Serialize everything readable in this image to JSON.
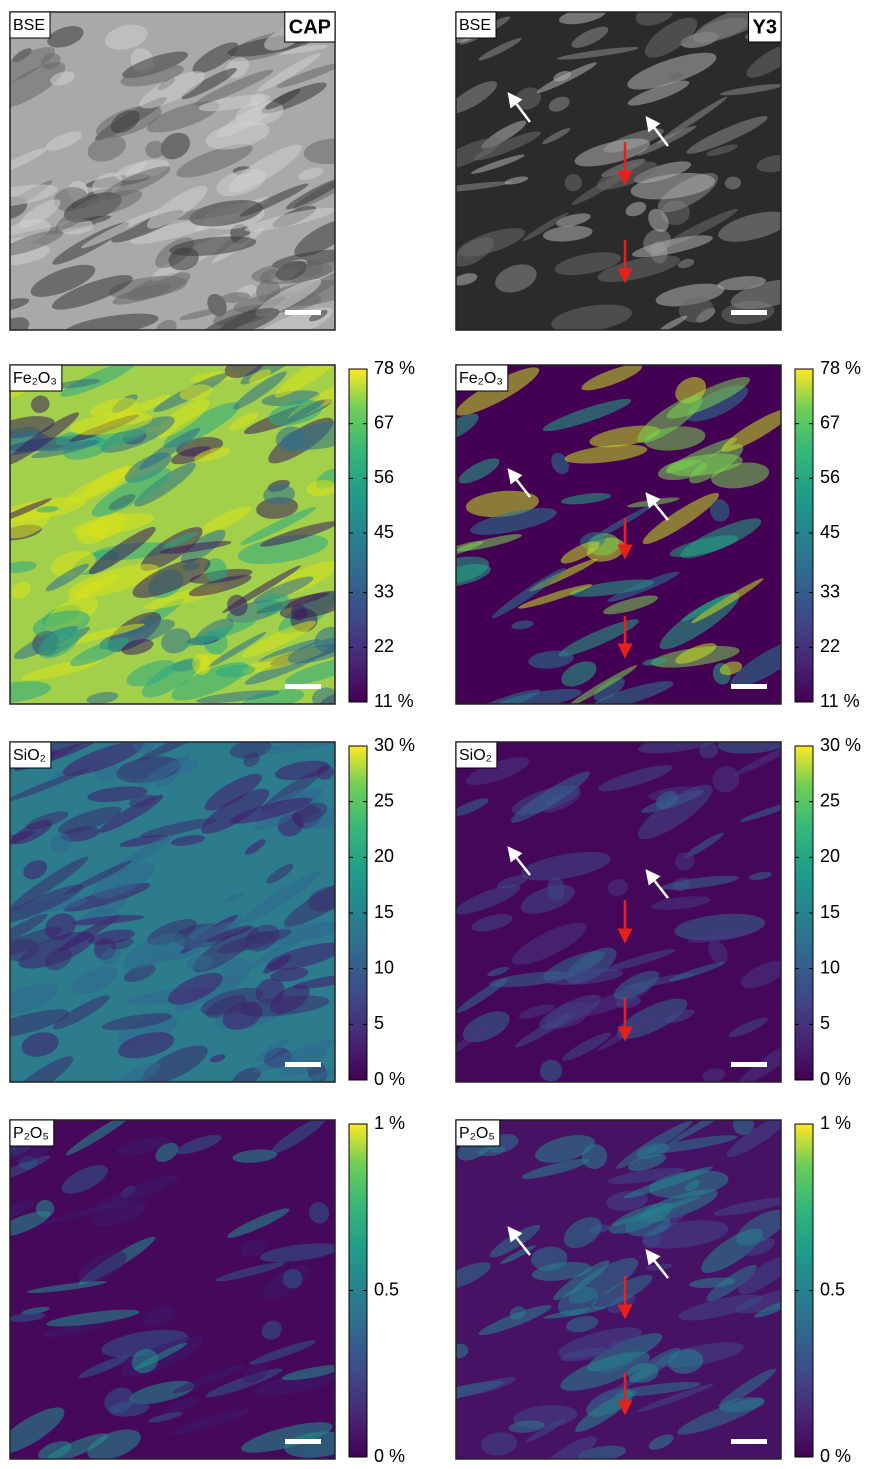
{
  "panels": [
    {
      "label": "BSE",
      "sample": "CAP"
    },
    {
      "label": "BSE",
      "sample": "Y3"
    },
    {
      "label": "Fe₂O₃",
      "colorbar": {
        "lim": [
          11,
          78
        ],
        "ticks": [
          {
            "value": 78,
            "label": "78 %"
          },
          67,
          56,
          45,
          33,
          22,
          {
            "value": 11,
            "label": "11 %"
          }
        ]
      }
    },
    {
      "label": "Fe₂O₃",
      "colorbar": {
        "lim": [
          11,
          78
        ],
        "ticks": [
          {
            "value": 78,
            "label": "78 %"
          },
          67,
          56,
          45,
          33,
          22,
          {
            "value": 11,
            "label": "11 %"
          }
        ]
      }
    },
    {
      "label": "SiO₂",
      "colorbar": {
        "lim": [
          0,
          30
        ],
        "ticks": [
          {
            "value": 30,
            "label": "30 %"
          },
          25,
          20,
          15,
          10,
          5,
          {
            "value": 0,
            "label": "0 %"
          }
        ]
      }
    },
    {
      "label": "SiO₂",
      "colorbar": {
        "lim": [
          0,
          30
        ],
        "ticks": [
          {
            "value": 30,
            "label": "30 %"
          },
          25,
          20,
          15,
          10,
          5,
          {
            "value": 0,
            "label": "0 %"
          }
        ]
      }
    },
    {
      "label": "P₂O₅",
      "colorbar": {
        "lim": [
          0,
          1
        ],
        "ticks": [
          {
            "value": 1,
            "label": "1 %"
          },
          0.5,
          {
            "value": 0,
            "label": "0 %"
          }
        ]
      }
    },
    {
      "label": "P₂O₅",
      "colorbar": {
        "lim": [
          0,
          1
        ],
        "ticks": [
          {
            "value": 1,
            "label": "1 %"
          },
          0.5,
          {
            "value": 0,
            "label": "0 %"
          }
        ]
      }
    }
  ]
}
